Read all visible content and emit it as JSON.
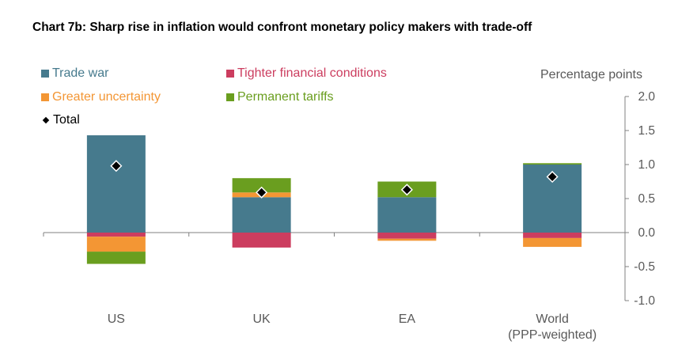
{
  "title": "Chart 7b:  Sharp rise in inflation would confront monetary policy makers with trade-off",
  "chart_data": {
    "type": "bar",
    "stacked": true,
    "ylabel": "Percentage points",
    "ylim": [
      -1.0,
      2.0
    ],
    "yticks": [
      "2.0",
      "1.5",
      "1.0",
      "0.5",
      "0.0",
      "-0.5",
      "-1.0"
    ],
    "categories": [
      "US",
      "UK",
      "EA",
      "World\n(PPP-weighted)"
    ],
    "series": [
      {
        "name": "Trade war",
        "color": "#467a8d",
        "values": [
          1.43,
          0.52,
          0.52,
          1.0
        ]
      },
      {
        "name": "Tighter financial conditions",
        "color": "#cc3d5f",
        "values": [
          -0.06,
          -0.22,
          -0.09,
          -0.08
        ]
      },
      {
        "name": "Greater uncertainty",
        "color": "#f39634",
        "values": [
          -0.22,
          0.07,
          -0.03,
          -0.13
        ]
      },
      {
        "name": "Permanent tariffs",
        "color": "#6a9e1f",
        "values": [
          -0.18,
          0.21,
          0.23,
          0.02
        ]
      }
    ],
    "total": {
      "name": "Total",
      "values": [
        0.98,
        0.59,
        0.63,
        0.82
      ]
    }
  }
}
